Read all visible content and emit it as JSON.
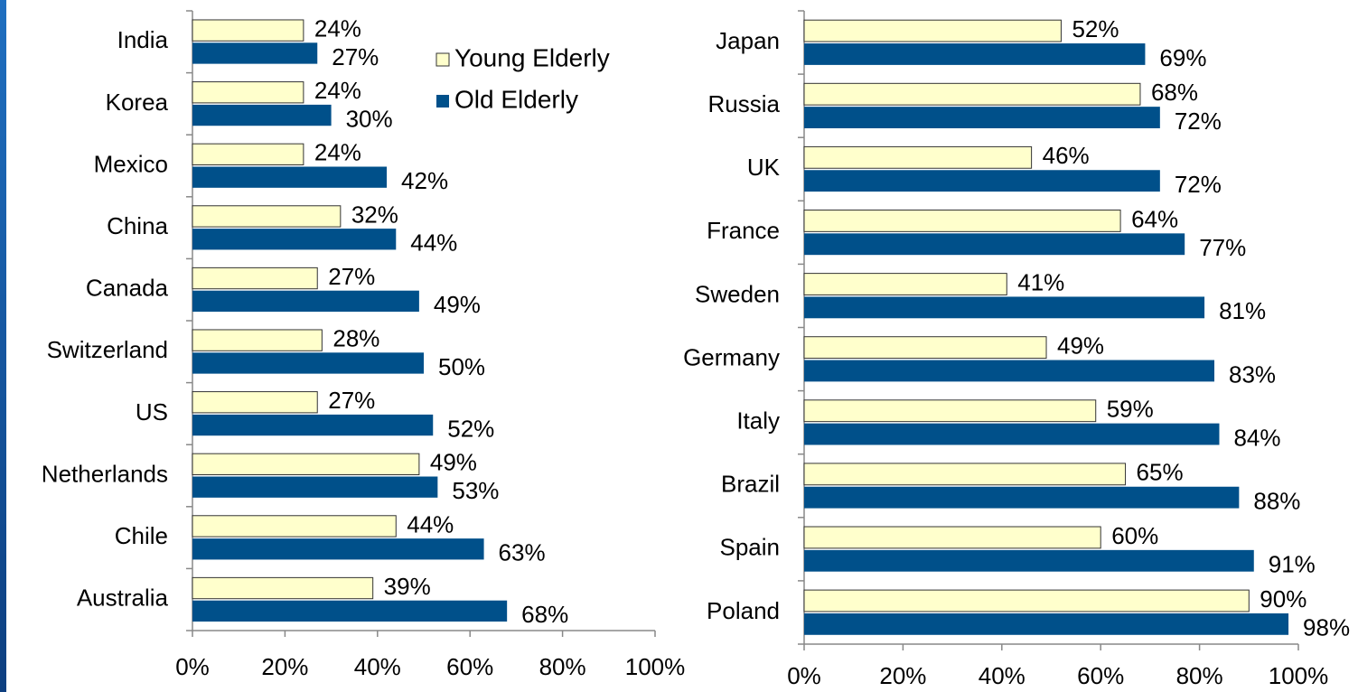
{
  "chart_data": [
    {
      "type": "bar",
      "orientation": "horizontal",
      "categories": [
        "India",
        "Korea",
        "Mexico",
        "China",
        "Canada",
        "Switzerland",
        "US",
        "Netherlands",
        "Chile",
        "Australia"
      ],
      "series": [
        {
          "name": "Young Elderly",
          "color": "#ffffcc",
          "values": [
            24,
            24,
            24,
            32,
            27,
            28,
            27,
            49,
            44,
            39
          ],
          "value_labels": [
            "24%",
            "24%",
            "24%",
            "32%",
            "27%",
            "28%",
            "27%",
            "49%",
            "44%",
            "39%"
          ]
        },
        {
          "name": "Old Elderly",
          "color": "#00508a",
          "values": [
            27,
            30,
            42,
            44,
            49,
            50,
            52,
            53,
            63,
            68
          ],
          "value_labels": [
            "27%",
            "30%",
            "42%",
            "44%",
            "49%",
            "50%",
            "52%",
            "53%",
            "63%",
            "68%"
          ]
        }
      ],
      "xlim": [
        0,
        100
      ],
      "xticks": [
        {
          "value": 0,
          "label": "0%"
        },
        {
          "value": 20,
          "label": "20%"
        },
        {
          "value": 40,
          "label": "40%"
        },
        {
          "value": 60,
          "label": "60%"
        },
        {
          "value": 80,
          "label": "80%"
        },
        {
          "value": 100,
          "label": "100%"
        }
      ],
      "legend": "top-right"
    },
    {
      "type": "bar",
      "orientation": "horizontal",
      "categories": [
        "Japan",
        "Russia",
        "UK",
        "France",
        "Sweden",
        "Germany",
        "Italy",
        "Brazil",
        "Spain",
        "Poland"
      ],
      "series": [
        {
          "color": "#ffffcc",
          "values": [
            52,
            68,
            46,
            64,
            41,
            49,
            59,
            65,
            60,
            90
          ],
          "value_labels": [
            "52%",
            "68%",
            "46%",
            "64%",
            "41%",
            "49%",
            "59%",
            "65%",
            "60%",
            "90%"
          ]
        },
        {
          "color": "#00508a",
          "values": [
            69,
            72,
            72,
            77,
            81,
            83,
            84,
            88,
            91,
            98
          ],
          "value_labels": [
            "69%",
            "72%",
            "72%",
            "77%",
            "81%",
            "83%",
            "84%",
            "88%",
            "91%",
            "98%"
          ]
        }
      ],
      "xlim": [
        0,
        100
      ],
      "xticks": [
        {
          "value": 0,
          "label": "0%"
        },
        {
          "value": 20,
          "label": "20%"
        },
        {
          "value": 40,
          "label": "40%"
        },
        {
          "value": 60,
          "label": "60%"
        },
        {
          "value": 80,
          "label": "80%"
        },
        {
          "value": 100,
          "label": "100%"
        }
      ]
    }
  ]
}
